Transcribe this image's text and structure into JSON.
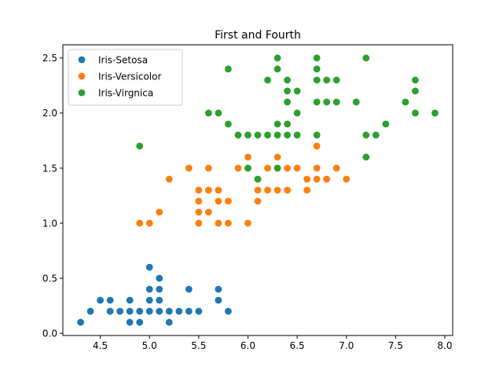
{
  "chart_data": {
    "type": "scatter",
    "title": "First and Fourth",
    "xlabel": "",
    "ylabel": "",
    "xlim": [
      4.12,
      8.08
    ],
    "ylim": [
      -0.02,
      2.62
    ],
    "xticks": [
      "4.5",
      "5.0",
      "5.5",
      "6.0",
      "6.5",
      "7.0",
      "7.5",
      "8.0"
    ],
    "yticks": [
      "0.0",
      "0.5",
      "1.0",
      "1.5",
      "2.0",
      "2.5"
    ],
    "grid": false,
    "legend_position": "top-left",
    "series": [
      {
        "name": "Iris-Setosa",
        "color": "#1f77b4",
        "points": [
          [
            4.3,
            0.1
          ],
          [
            4.4,
            0.2
          ],
          [
            4.5,
            0.3
          ],
          [
            4.6,
            0.2
          ],
          [
            4.6,
            0.3
          ],
          [
            4.7,
            0.2
          ],
          [
            4.8,
            0.1
          ],
          [
            4.8,
            0.2
          ],
          [
            4.8,
            0.3
          ],
          [
            4.9,
            0.1
          ],
          [
            4.9,
            0.2
          ],
          [
            5.0,
            0.2
          ],
          [
            5.0,
            0.3
          ],
          [
            5.0,
            0.4
          ],
          [
            5.0,
            0.6
          ],
          [
            5.1,
            0.2
          ],
          [
            5.1,
            0.3
          ],
          [
            5.1,
            0.4
          ],
          [
            5.1,
            0.5
          ],
          [
            5.2,
            0.1
          ],
          [
            5.2,
            0.2
          ],
          [
            5.3,
            0.2
          ],
          [
            5.4,
            0.2
          ],
          [
            5.4,
            0.4
          ],
          [
            5.5,
            0.2
          ],
          [
            5.7,
            0.3
          ],
          [
            5.7,
            0.4
          ],
          [
            5.8,
            0.2
          ]
        ]
      },
      {
        "name": "Iris-Versicolor",
        "color": "#ff7f0e",
        "points": [
          [
            4.9,
            1.0
          ],
          [
            5.0,
            1.0
          ],
          [
            5.1,
            1.1
          ],
          [
            5.2,
            1.4
          ],
          [
            5.4,
            1.5
          ],
          [
            5.5,
            1.0
          ],
          [
            5.5,
            1.1
          ],
          [
            5.5,
            1.2
          ],
          [
            5.5,
            1.3
          ],
          [
            5.6,
            1.1
          ],
          [
            5.6,
            1.3
          ],
          [
            5.6,
            1.5
          ],
          [
            5.7,
            1.0
          ],
          [
            5.7,
            1.2
          ],
          [
            5.7,
            1.3
          ],
          [
            5.8,
            1.0
          ],
          [
            5.8,
            1.2
          ],
          [
            5.9,
            1.5
          ],
          [
            6.0,
            1.0
          ],
          [
            6.0,
            1.5
          ],
          [
            6.0,
            1.6
          ],
          [
            6.1,
            1.2
          ],
          [
            6.1,
            1.3
          ],
          [
            6.1,
            1.4
          ],
          [
            6.2,
            1.3
          ],
          [
            6.2,
            1.5
          ],
          [
            6.3,
            1.3
          ],
          [
            6.3,
            1.5
          ],
          [
            6.3,
            1.6
          ],
          [
            6.4,
            1.3
          ],
          [
            6.4,
            1.5
          ],
          [
            6.5,
            1.5
          ],
          [
            6.6,
            1.3
          ],
          [
            6.6,
            1.4
          ],
          [
            6.7,
            1.4
          ],
          [
            6.7,
            1.5
          ],
          [
            6.7,
            1.7
          ],
          [
            6.8,
            1.4
          ],
          [
            6.9,
            1.5
          ],
          [
            7.0,
            1.4
          ]
        ]
      },
      {
        "name": "Iris-Virgnica",
        "color": "#2ca02c",
        "points": [
          [
            4.9,
            1.7
          ],
          [
            5.6,
            2.0
          ],
          [
            5.7,
            2.0
          ],
          [
            5.8,
            1.9
          ],
          [
            5.8,
            2.4
          ],
          [
            5.9,
            1.8
          ],
          [
            6.0,
            1.5
          ],
          [
            6.0,
            1.8
          ],
          [
            6.1,
            1.4
          ],
          [
            6.1,
            1.8
          ],
          [
            6.2,
            1.8
          ],
          [
            6.2,
            2.3
          ],
          [
            6.3,
            1.5
          ],
          [
            6.3,
            1.8
          ],
          [
            6.3,
            1.9
          ],
          [
            6.3,
            2.4
          ],
          [
            6.3,
            2.5
          ],
          [
            6.4,
            1.8
          ],
          [
            6.4,
            1.9
          ],
          [
            6.4,
            2.1
          ],
          [
            6.4,
            2.2
          ],
          [
            6.4,
            2.3
          ],
          [
            6.5,
            1.8
          ],
          [
            6.5,
            2.0
          ],
          [
            6.5,
            2.2
          ],
          [
            6.7,
            1.8
          ],
          [
            6.7,
            2.1
          ],
          [
            6.7,
            2.3
          ],
          [
            6.7,
            2.4
          ],
          [
            6.7,
            2.5
          ],
          [
            6.8,
            2.1
          ],
          [
            6.8,
            2.3
          ],
          [
            6.9,
            2.1
          ],
          [
            6.9,
            2.3
          ],
          [
            7.1,
            2.1
          ],
          [
            7.2,
            1.6
          ],
          [
            7.2,
            1.8
          ],
          [
            7.2,
            2.5
          ],
          [
            7.3,
            1.8
          ],
          [
            7.4,
            1.9
          ],
          [
            7.6,
            2.1
          ],
          [
            7.7,
            2.0
          ],
          [
            7.7,
            2.2
          ],
          [
            7.7,
            2.3
          ],
          [
            7.9,
            2.0
          ]
        ]
      }
    ]
  }
}
